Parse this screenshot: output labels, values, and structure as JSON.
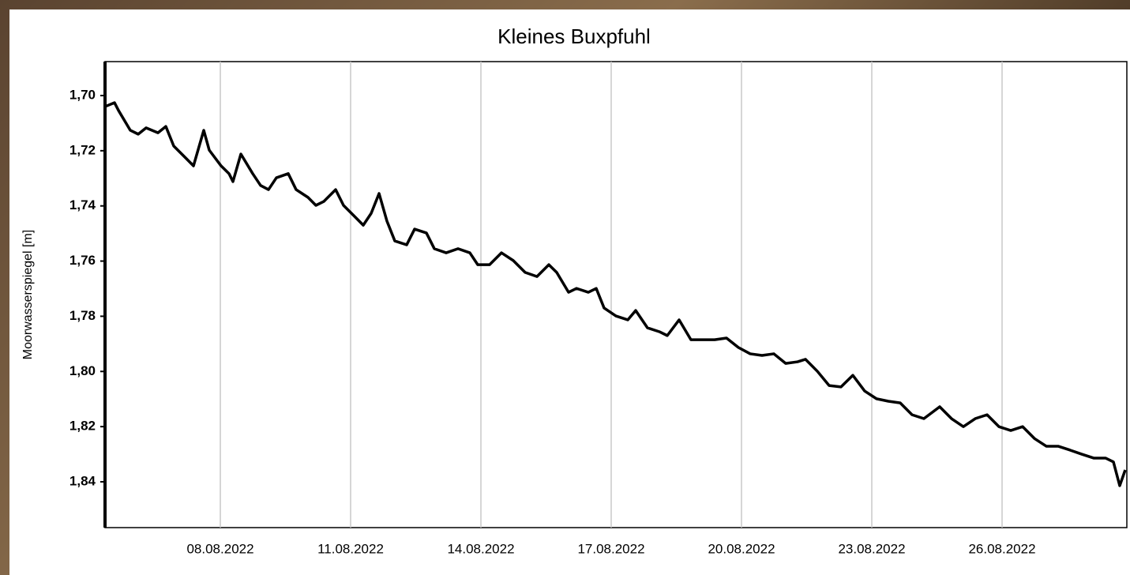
{
  "chart_data": {
    "type": "line",
    "title": "Kleines Buxpfuhl",
    "y_label": "Moorwasserspiegel [m]",
    "color": "#000000",
    "grid": true,
    "xlim": [
      5.345,
      28.873
    ],
    "ylim": [
      1.8566,
      1.6877
    ],
    "xticks": [
      {
        "value": 8,
        "label": "08.08.2022"
      },
      {
        "value": 11,
        "label": "11.08.2022"
      },
      {
        "value": 14,
        "label": "14.08.2022"
      },
      {
        "value": 17,
        "label": "17.08.2022"
      },
      {
        "value": 20,
        "label": "20.08.2022"
      },
      {
        "value": 23,
        "label": "23.08.2022"
      },
      {
        "value": 26,
        "label": "26.08.2022"
      }
    ],
    "yticks": [
      {
        "value": 1.7,
        "label": "1,70"
      },
      {
        "value": 1.72,
        "label": "1,72"
      },
      {
        "value": 1.74,
        "label": "1,74"
      },
      {
        "value": 1.76,
        "label": "1,76"
      },
      {
        "value": 1.78,
        "label": "1,78"
      },
      {
        "value": 1.8,
        "label": "1,80"
      },
      {
        "value": 1.82,
        "label": "1,82"
      },
      {
        "value": 1.84,
        "label": "1,84"
      }
    ],
    "x": [
      5.345,
      5.564,
      5.655,
      5.927,
      6.109,
      6.291,
      6.564,
      6.745,
      6.927,
      7.2,
      7.382,
      7.618,
      7.745,
      8.018,
      8.2,
      8.291,
      8.473,
      8.745,
      8.927,
      9.109,
      9.291,
      9.564,
      9.745,
      10.018,
      10.2,
      10.382,
      10.655,
      10.836,
      11.109,
      11.291,
      11.473,
      11.655,
      11.836,
      12.018,
      12.291,
      12.473,
      12.745,
      12.927,
      13.2,
      13.473,
      13.745,
      13.927,
      14.2,
      14.473,
      14.745,
      15.018,
      15.291,
      15.564,
      15.745,
      16.018,
      16.2,
      16.473,
      16.655,
      16.836,
      17.109,
      17.382,
      17.564,
      17.836,
      18.109,
      18.291,
      18.564,
      18.836,
      19.109,
      19.382,
      19.655,
      19.927,
      20.2,
      20.473,
      20.745,
      21.018,
      21.291,
      21.473,
      21.745,
      22.018,
      22.291,
      22.564,
      22.836,
      23.109,
      23.382,
      23.655,
      23.927,
      24.2,
      24.564,
      24.836,
      25.109,
      25.382,
      25.655,
      25.927,
      26.2,
      26.473,
      26.745,
      27.018,
      27.291,
      27.564,
      27.836,
      28.109,
      28.382,
      28.564,
      28.709,
      28.836
    ],
    "values": [
      1.704,
      1.7026,
      1.7054,
      1.7126,
      1.714,
      1.7117,
      1.7135,
      1.7112,
      1.7183,
      1.7226,
      1.7255,
      1.7126,
      1.7198,
      1.7255,
      1.7283,
      1.7312,
      1.7212,
      1.7283,
      1.7326,
      1.7341,
      1.7298,
      1.7283,
      1.7341,
      1.7369,
      1.7398,
      1.7384,
      1.7341,
      1.7398,
      1.7441,
      1.747,
      1.7427,
      1.7355,
      1.7455,
      1.7527,
      1.7541,
      1.7484,
      1.7498,
      1.7555,
      1.757,
      1.7555,
      1.757,
      1.7613,
      1.7613,
      1.757,
      1.7598,
      1.7641,
      1.7656,
      1.7613,
      1.7641,
      1.7713,
      1.7699,
      1.7713,
      1.7699,
      1.777,
      1.7799,
      1.7813,
      1.7779,
      1.7842,
      1.7856,
      1.787,
      1.7813,
      1.7885,
      1.7885,
      1.7885,
      1.7879,
      1.7913,
      1.7936,
      1.7942,
      1.7936,
      1.7971,
      1.7965,
      1.7956,
      1.7999,
      1.8051,
      1.8056,
      1.8014,
      1.8071,
      1.8099,
      1.8108,
      1.8114,
      1.8157,
      1.8171,
      1.8128,
      1.8171,
      1.82,
      1.8171,
      1.8157,
      1.82,
      1.8214,
      1.82,
      1.8243,
      1.8271,
      1.8271,
      1.8285,
      1.83,
      1.8314,
      1.8314,
      1.8328,
      1.8414,
      1.8357
    ]
  }
}
